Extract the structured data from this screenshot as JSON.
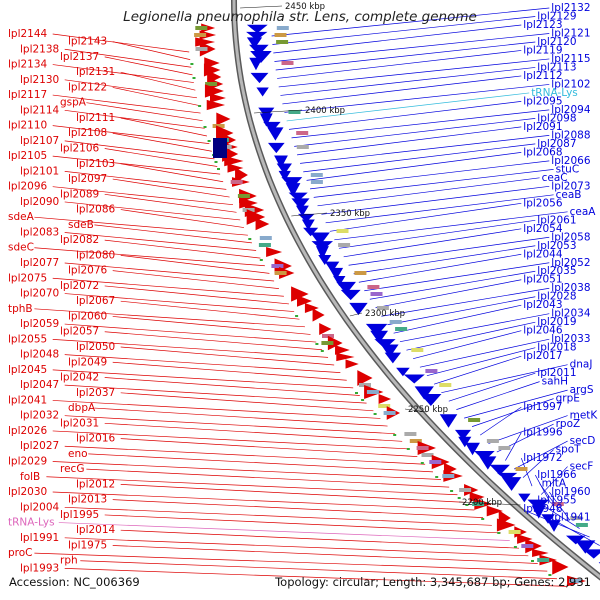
{
  "title": "Legionella pneumophila str. Lens, complete genome",
  "footer": {
    "accession": "Accession: NC_006369",
    "topology": "Topology: circular; Length: 3,345,687 bp; Genes: 2,931"
  },
  "colors": {
    "forward": "#dd0000",
    "reverse": "#0000dd",
    "trna": "#33bbdd",
    "trna_left": "#dd66bb",
    "backbone": "#888888"
  },
  "ticks": [
    "2450 kbp",
    "2400 kbp",
    "2350 kbp",
    "2300 kbp",
    "2250 kbp",
    "2200 kbp"
  ],
  "left_labels": [
    "lpl2144",
    "lpl2143",
    "lpl2138",
    "lpl2137",
    "lpl2134",
    "lpl2131",
    "lpl2130",
    "lpl2122",
    "lpl2117",
    "gspA",
    "lpl2114",
    "lpl2111",
    "lpl2110",
    "lpl2108",
    "lpl2107",
    "lpl2106",
    "lpl2105",
    "lpl2103",
    "lpl2101",
    "lpl2097",
    "lpl2096",
    "lpl2089",
    "lpl2090",
    "lpl2086",
    "sdeA",
    "sdeB",
    "lpl2083",
    "lpl2082",
    "sdeC",
    "lpl2080",
    "lpl2077",
    "lpl2076",
    "lpl2075",
    "lpl2072",
    "lpl2070",
    "lpl2067",
    "tphB",
    "lpl2060",
    "lpl2059",
    "lpl2057",
    "lpl2055",
    "lpl2050",
    "lpl2048",
    "lpl2049",
    "lpl2045",
    "lpl2042",
    "lpl2047",
    "lpl2037",
    "lpl2041",
    "dbpA",
    "lpl2032",
    "lpl2031",
    "lpl2026",
    "lpl2016",
    "lpl2027",
    "eno",
    "lpl2029",
    "recG",
    "folB",
    "lpl2012",
    "lpl2030",
    "lpl2013",
    "lpl2004",
    "lpl1995",
    "tRNA-Lys",
    "lpl2014",
    "lpl1991",
    "lpl1975",
    "proC",
    "rph",
    "lpl1993"
  ],
  "right_labels": [
    "lpl2132",
    "lpl2129",
    "lpl2123",
    "lpl2121",
    "lpl2120",
    "lpl2119",
    "lpl2115",
    "lpl2113",
    "lpl2112",
    "lpl2102",
    "tRNA-Lys",
    "lpl2095",
    "lpl2094",
    "lpl2098",
    "lpl2091",
    "lpl2088",
    "lpl2087",
    "lpl2068",
    "lpl2066",
    "stuC",
    "ceaC",
    "lpl2073",
    "ceaB",
    "lpl2056",
    "ceaA",
    "lpl2061",
    "lpl2054",
    "lpl2058",
    "lpl2053",
    "lpl2044",
    "lpl2052",
    "lpl2035",
    "lpl2051",
    "lpl2038",
    "lpl2028",
    "lpl2043",
    "lpl2034",
    "lpl2019",
    "lpl2046",
    "lpl2033",
    "lpl2018",
    "lpl2017",
    "dnaJ",
    "lpl2011",
    "sahH",
    "argS",
    "grpE",
    "lpl1997",
    "metK",
    "rpoZ",
    "lpl1996",
    "secD",
    "spoT",
    "lpl1972",
    "secF",
    "lpl1966",
    "mltA",
    "lpl1960",
    "lpl1955",
    "lpl1948",
    "lpl1941"
  ]
}
